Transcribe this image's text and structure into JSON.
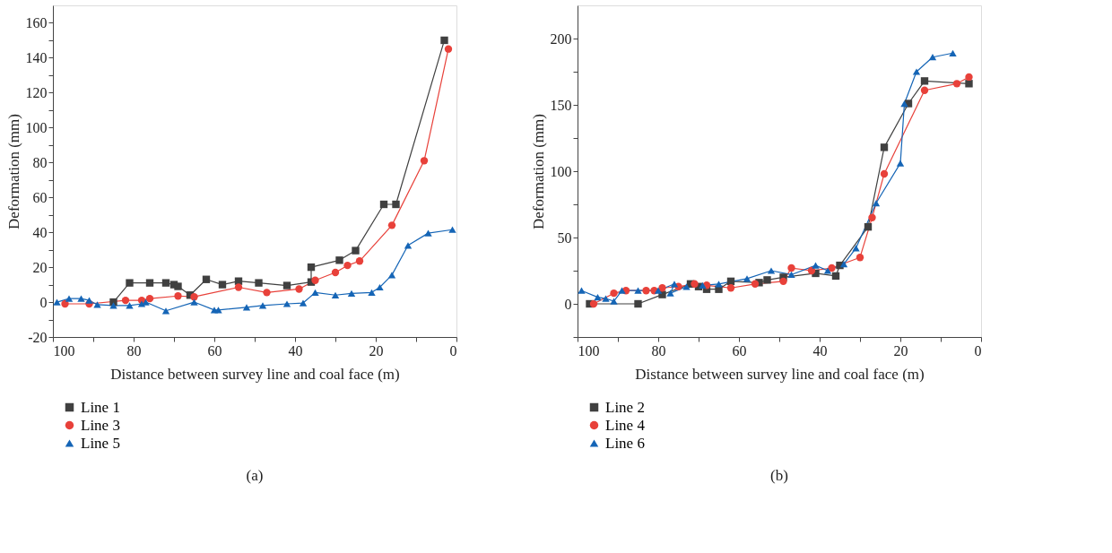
{
  "chart_data": [
    {
      "type": "line",
      "xlabel": "Distance between survey line and coal face (m)",
      "ylabel": "Deformation (mm)",
      "annotations": [
        "(a)"
      ],
      "xlim": [
        100,
        0
      ],
      "xticks": [
        100,
        {
          "value": 90,
          "label": null
        },
        80,
        {
          "value": 70,
          "label": null
        },
        60,
        {
          "value": 50,
          "label": null
        },
        40,
        {
          "value": 30,
          "label": null
        },
        20,
        {
          "value": 10,
          "label": null
        },
        0
      ],
      "ylim": [
        -20,
        170
      ],
      "yticks": [
        -20,
        {
          "value": -10,
          "label": null
        },
        0,
        {
          "value": 10,
          "label": null
        },
        20,
        {
          "value": 30,
          "label": null
        },
        40,
        {
          "value": 50,
          "label": null
        },
        60,
        {
          "value": 70,
          "label": null
        },
        80,
        {
          "value": 90,
          "label": null
        },
        100,
        {
          "value": 110,
          "label": null
        },
        120,
        {
          "value": 130,
          "label": null
        },
        140,
        {
          "value": 150,
          "label": null
        },
        160
      ],
      "grid": false,
      "legend": "bottom left",
      "line_style": "solid",
      "series": [
        {
          "name": "Line 1",
          "color": "#404040",
          "marker": "square",
          "x": [
            85,
            81,
            76,
            72,
            70,
            69,
            66,
            62,
            58,
            54,
            49,
            42,
            36,
            36,
            29,
            25,
            18,
            15,
            3
          ],
          "values": [
            0,
            11,
            11,
            11,
            10,
            9,
            4,
            13,
            10,
            12,
            11,
            9.5,
            11.5,
            20,
            24,
            29.5,
            56,
            56,
            150
          ]
        },
        {
          "name": "Line 3",
          "color": "#e8413a",
          "marker": "circle",
          "x": [
            97,
            91,
            82,
            78,
            76,
            69,
            65,
            54,
            47,
            39,
            35,
            30,
            27,
            24,
            16,
            8,
            2
          ],
          "values": [
            -1,
            -1,
            1,
            1,
            2,
            3.5,
            3,
            8.5,
            5.5,
            7.5,
            12.5,
            17,
            21,
            23.5,
            44,
            81,
            145
          ]
        },
        {
          "name": "Line 5",
          "color": "#1565b6",
          "marker": "triangle",
          "x": [
            99,
            96,
            93,
            91,
            89,
            85,
            81,
            78,
            77,
            72,
            65,
            60,
            59,
            52,
            48,
            42,
            38,
            35,
            30,
            26,
            21,
            19,
            16,
            12,
            7,
            1
          ],
          "values": [
            0,
            2,
            2,
            1,
            -1.5,
            -2,
            -2,
            -1,
            0,
            -5,
            0,
            -4.5,
            -4.5,
            -3,
            -2,
            -1,
            -0.5,
            5.5,
            4,
            5,
            5.5,
            8.5,
            15.5,
            32.5,
            39.5,
            41.5
          ]
        }
      ]
    },
    {
      "type": "line",
      "xlabel": "Distance between survey line and coal face (m)",
      "ylabel": "Deformation (mm)",
      "annotations": [
        "(b)"
      ],
      "xlim": [
        100,
        0
      ],
      "xticks": [
        100,
        {
          "value": 90,
          "label": null
        },
        80,
        {
          "value": 70,
          "label": null
        },
        60,
        {
          "value": 50,
          "label": null
        },
        40,
        {
          "value": 30,
          "label": null
        },
        20,
        {
          "value": 10,
          "label": null
        },
        0
      ],
      "ylim": [
        -25,
        225
      ],
      "yticks": [
        {
          "value": -25,
          "label": null
        },
        0,
        {
          "value": 25,
          "label": null
        },
        50,
        {
          "value": 75,
          "label": null
        },
        100,
        {
          "value": 125,
          "label": null
        },
        150,
        {
          "value": 175,
          "label": null
        },
        200
      ],
      "grid": false,
      "legend": "bottom left",
      "line_style": "solid",
      "series": [
        {
          "name": "Line 2",
          "color": "#404040",
          "marker": "square",
          "x": [
            97,
            85,
            79,
            72,
            70,
            68,
            65,
            62,
            55,
            53,
            49,
            41,
            36,
            35,
            28,
            24,
            18,
            14,
            3
          ],
          "values": [
            0,
            0,
            7,
            15,
            13,
            11,
            11,
            17,
            16,
            18,
            20,
            23,
            21,
            29,
            58,
            118,
            151,
            168,
            166
          ]
        },
        {
          "name": "Line 4",
          "color": "#e8413a",
          "marker": "circle",
          "x": [
            96,
            91,
            88,
            83,
            81,
            79,
            75,
            71,
            68,
            62,
            56,
            49,
            47,
            42,
            37,
            30,
            27,
            24,
            14,
            6,
            3
          ],
          "values": [
            0,
            8,
            10,
            10,
            10,
            12,
            13,
            15,
            14,
            12,
            15,
            17,
            27,
            25,
            27,
            35,
            65,
            98,
            161,
            166,
            171
          ]
        },
        {
          "name": "Line 6",
          "color": "#1565b6",
          "marker": "triangle",
          "x": [
            99,
            95,
            93,
            91,
            89,
            85,
            80,
            76,
            77,
            73,
            69,
            65,
            58,
            52,
            47,
            41,
            38,
            34,
            31,
            26,
            20,
            19,
            16,
            12,
            7
          ],
          "values": [
            10,
            5,
            4,
            2,
            10,
            10,
            10,
            15,
            8,
            13,
            14,
            15,
            19,
            25,
            22,
            29,
            25,
            30,
            42,
            76,
            106,
            151,
            175,
            186,
            189
          ]
        }
      ]
    }
  ]
}
